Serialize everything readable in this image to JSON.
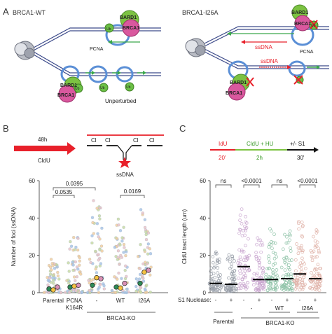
{
  "panelA": {
    "label": "A",
    "left_title": "BRCA1-WT",
    "right_title": "BRCA1-I26A",
    "bard1": "BARD1",
    "brca1": "BRCA1",
    "ub": "Ub",
    "pcna": "PCNA",
    "ssdna": "ssDNA",
    "unperturbed": "Unperturbed",
    "colors": {
      "bard1_green": "#7cc242",
      "brca1_pink": "#d9589e",
      "ring_blue": "#5b8fd6",
      "ub_green": "#6bbf45",
      "ssdna_red": "#e8202a"
    }
  },
  "panelB": {
    "label": "B",
    "time_label": "48h",
    "drug_label": "CldU",
    "cl_label": "Cl",
    "ssdna_label": "ssDNA",
    "ylabel": "Number of foci (ssDNA)",
    "yticks": [
      "0",
      "20",
      "40",
      "60"
    ],
    "pvals": [
      "0.0395",
      "0.0535",
      "0.0169"
    ],
    "xlabels": [
      "Parental",
      "PCNA",
      "K164R",
      "-",
      "WT",
      "I26A"
    ],
    "group_label": "BRCA1-KO"
  },
  "panelC": {
    "label": "C",
    "step1": "IdU",
    "step2": "CldU + HU",
    "step3": "+/- S1",
    "t1": "20'",
    "t2": "2h",
    "t3": "30'",
    "ylabel": "CldU tract length (um)",
    "yticks": [
      "0",
      "20",
      "40",
      "60"
    ],
    "pvals": [
      "ns",
      "<0.0001",
      "ns",
      "<0.0001"
    ],
    "s1_label": "S1 Nuclease:",
    "signs": [
      "-",
      "+",
      "-",
      "+",
      "-",
      "+",
      "-",
      "+"
    ],
    "sub_labels": [
      "-",
      "WT",
      "I26A"
    ],
    "parental": "Parental",
    "group_label": "BRCA1-KO"
  },
  "chart_data": [
    {
      "type": "scatter",
      "title": "",
      "xlabel": "",
      "ylabel": "Number of foci (ssDNA)",
      "ylim": [
        0,
        60
      ],
      "categories": [
        "Parental",
        "PCNA K164R",
        "BRCA1-KO -",
        "BRCA1-KO WT",
        "BRCA1-KO I26A"
      ],
      "replicate_means": [
        [
          2,
          1.5,
          3
        ],
        [
          3,
          3.5,
          4
        ],
        [
          4,
          8,
          7.5
        ],
        [
          3,
          2.5,
          5
        ],
        [
          5,
          11,
          12
        ]
      ],
      "spread_max": [
        18,
        30,
        50,
        40,
        45
      ],
      "pvalues": [
        {
          "pair": [
            "Parental",
            "BRCA1-KO -"
          ],
          "p": "0.0395"
        },
        {
          "pair": [
            "Parental",
            "PCNA K164R"
          ],
          "p": "0.0535"
        },
        {
          "pair": [
            "BRCA1-KO WT",
            "BRCA1-KO I26A"
          ],
          "p": "0.0169"
        }
      ]
    },
    {
      "type": "scatter",
      "title": "",
      "xlabel": "",
      "ylabel": "CldU tract length (um)",
      "ylim": [
        0,
        60
      ],
      "categories": [
        "Parental -",
        "Parental +",
        "BRCA1-KO - -",
        "BRCA1-KO - +",
        "WT -",
        "WT +",
        "I26A -",
        "I26A +"
      ],
      "medians": [
        5,
        4.5,
        14,
        7,
        7,
        7.5,
        10,
        7.5
      ],
      "spread_max": [
        22,
        22,
        47,
        30,
        36,
        33,
        40,
        34
      ],
      "pvalues": [
        {
          "pair": [
            "Parental -",
            "Parental +"
          ],
          "p": "ns"
        },
        {
          "pair": [
            "BRCA1-KO - -",
            "BRCA1-KO - +"
          ],
          "p": "<0.0001"
        },
        {
          "pair": [
            "WT -",
            "WT +"
          ],
          "p": "ns"
        },
        {
          "pair": [
            "I26A -",
            "I26A +"
          ],
          "p": "<0.0001"
        }
      ]
    }
  ]
}
